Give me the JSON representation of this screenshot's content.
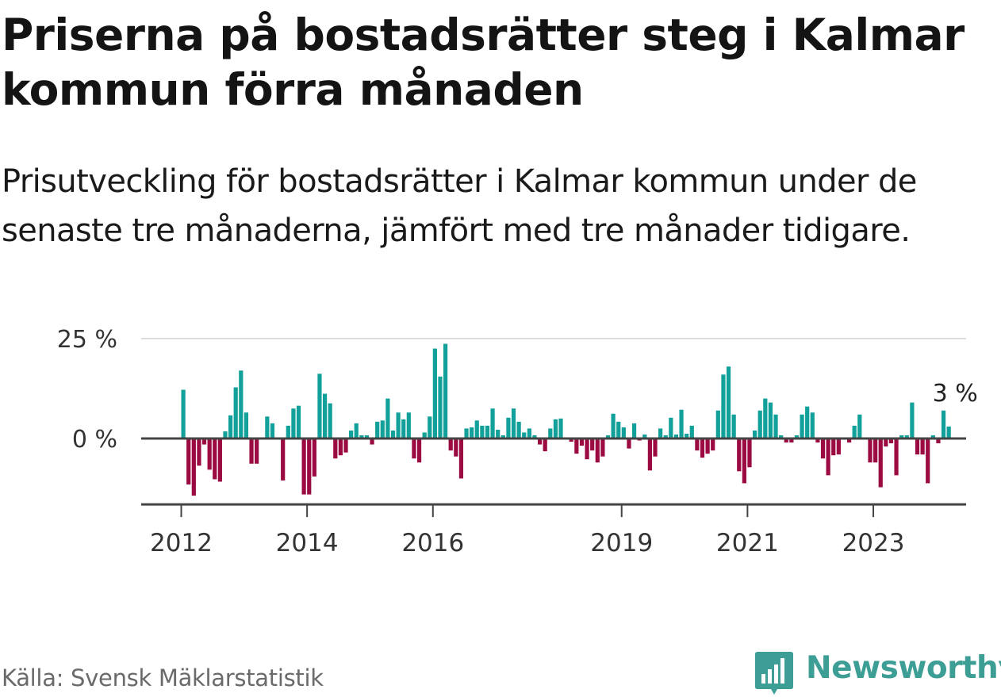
{
  "header": {
    "title": "Priserna på bostadsrätter steg i Kalmar kommun förra månaden",
    "subtitle": "Prisutveckling för bostadsrätter i Kalmar kommun under de senaste tre månaderna, jämfört med tre månader tidigare."
  },
  "footer": {
    "source": "Källa: Svensk Mäklarstatistik",
    "brand": "Newsworthy"
  },
  "colors": {
    "positive": "#12a09a",
    "negative": "#9b0a40",
    "axis": "#444444",
    "grid": "#dddddd",
    "brand": "#3d9e96"
  },
  "chart_data": {
    "type": "bar",
    "title": "Priserna på bostadsrätter steg i Kalmar kommun förra månaden",
    "xlabel": "",
    "ylabel": "",
    "unit": "%",
    "ylim": [
      -16.5,
      25
    ],
    "y_ticks": [
      {
        "value": 25,
        "label": "25 %"
      },
      {
        "value": 0,
        "label": "0 %"
      }
    ],
    "x_ticks": [
      {
        "year": 2012,
        "label": "2012"
      },
      {
        "year": 2014,
        "label": "2014"
      },
      {
        "year": 2016,
        "label": "2016"
      },
      {
        "year": 2019,
        "label": "2019"
      },
      {
        "year": 2021,
        "label": "2021"
      },
      {
        "year": 2023,
        "label": "2023"
      }
    ],
    "start": {
      "year": 2012,
      "month": 1
    },
    "annotation": {
      "label": "3 %",
      "value": 3,
      "target": "last"
    },
    "values": [
      12.2,
      -11.5,
      -14.3,
      -6.8,
      -1.5,
      -7.8,
      -10.2,
      -10.8,
      1.8,
      5.8,
      12.8,
      17.0,
      6.5,
      -6.3,
      -6.3,
      0,
      5.5,
      3.8,
      0,
      -10.5,
      3.2,
      7.5,
      8.2,
      -14.0,
      -14.0,
      -9.5,
      16.2,
      11.2,
      8.8,
      -5.0,
      -4.2,
      -3.5,
      2.0,
      3.8,
      0.8,
      0.8,
      -1.5,
      4.2,
      4.5,
      10.0,
      2.0,
      6.5,
      4.8,
      6.5,
      -5.0,
      -6.0,
      1.5,
      5.5,
      22.5,
      15.5,
      23.7,
      -3.0,
      -4.5,
      -10.0,
      2.5,
      2.8,
      4.5,
      3.2,
      3.2,
      7.5,
      2.2,
      0.8,
      5.2,
      7.5,
      4.2,
      1.5,
      2.5,
      0.8,
      -1.5,
      -3.2,
      2.5,
      4.8,
      5.0,
      0,
      -0.8,
      -3.8,
      -1.8,
      -5.2,
      -3.0,
      -6.0,
      -4.5,
      0.8,
      6.2,
      4.2,
      2.8,
      -2.5,
      3.8,
      -0.5,
      1.0,
      -8.0,
      -4.5,
      2.5,
      0.8,
      5.2,
      1.0,
      7.2,
      1.2,
      3.2,
      -3.0,
      -4.8,
      -3.8,
      -3.0,
      7.0,
      16.0,
      18.0,
      6.0,
      -8.2,
      -11.2,
      -7.2,
      2.0,
      7.0,
      10.0,
      9.0,
      6.0,
      0.8,
      -1.0,
      -1.0,
      0.8,
      6.0,
      8.0,
      6.5,
      -1.0,
      -5.0,
      -9.2,
      -4.2,
      -4.0,
      0,
      -1.0,
      3.2,
      6.0,
      0,
      -6.0,
      -6.0,
      -12.2,
      -2.0,
      -1.2,
      -9.2,
      0.8,
      0.8,
      9.0,
      -4.0,
      -4.0,
      -11.2,
      0.8,
      -1.2,
      7.0,
      3.0
    ]
  }
}
